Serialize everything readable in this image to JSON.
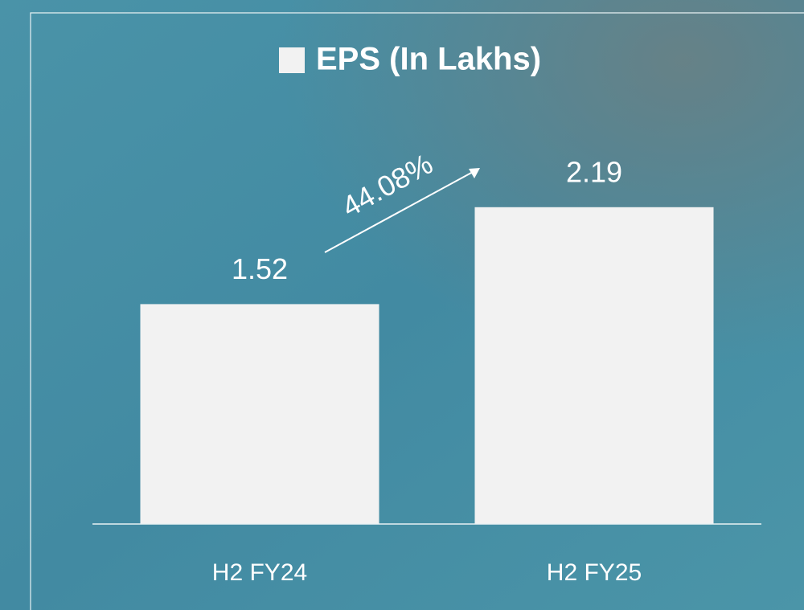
{
  "chart_data": {
    "type": "bar",
    "categories": [
      "H2 FY24",
      "H2 FY25"
    ],
    "series": [
      {
        "name": "EPS (In Lakhs)",
        "color": "#f2f2f2",
        "values": [
          1.52,
          2.19
        ]
      }
    ],
    "ylim": [
      0,
      2.5
    ],
    "annotations": [
      "44.08%"
    ]
  }
}
